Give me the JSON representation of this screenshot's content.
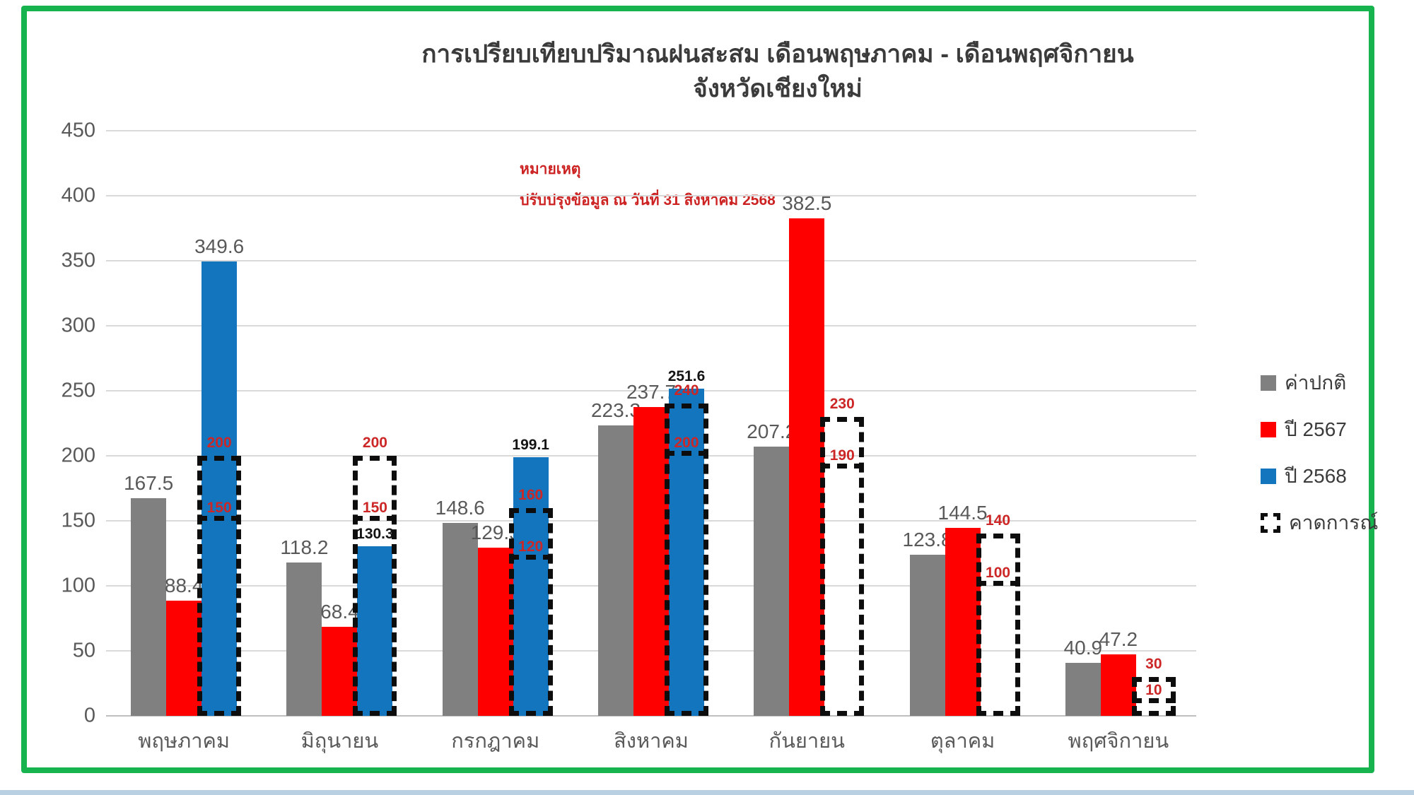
{
  "frame": {
    "border_color": "#16b34f"
  },
  "title": {
    "line1": "การเปรียบเทียบปริมาณฝนสะสม เดือนพฤษภาคม - เดือนพฤศจิกายน",
    "line2": "จังหวัดเชียงใหม่"
  },
  "note": {
    "line1": "หมายเหตุ",
    "line2": "ปรับปรุงข้อมูล ณ วันที่ 31 สิงหาคม 2568",
    "color": "#cc2222"
  },
  "chart_data": {
    "type": "bar",
    "categories": [
      "พฤษภาคม",
      "มิถุนายน",
      "กรกฎาคม",
      "สิงหาคม",
      "กันยายน",
      "ตุลาคม",
      "พฤศจิกายน"
    ],
    "series": [
      {
        "key": "normal",
        "name": "ค่าปกติ",
        "color": "#808080",
        "values": [
          167.5,
          118.2,
          148.6,
          223.3,
          207.2,
          123.8,
          40.9
        ]
      },
      {
        "key": "y2567",
        "name": "ปี 2567",
        "color": "#fe0000",
        "values": [
          88.4,
          68.4,
          129.5,
          237.7,
          382.5,
          144.5,
          47.2
        ]
      },
      {
        "key": "y2568",
        "name": "ปี 2568",
        "color": "#1375be",
        "values": [
          349.6,
          130.3,
          199.1,
          251.6,
          null,
          null,
          null
        ],
        "label_bold": [
          false,
          true,
          true,
          true
        ]
      }
    ],
    "forecast": {
      "key": "forecast",
      "name": "คาดการณ์",
      "upper": [
        200,
        200,
        160,
        240,
        230,
        140,
        30
      ],
      "lower": [
        150,
        150,
        120,
        200,
        190,
        100,
        10
      ],
      "label_color": "#cc2626",
      "line_color": "#0d0d0d"
    },
    "ylim": [
      0,
      450
    ],
    "ytick_step": 50,
    "grid": true,
    "legend_position": "right",
    "xlabel": "",
    "ylabel": ""
  }
}
